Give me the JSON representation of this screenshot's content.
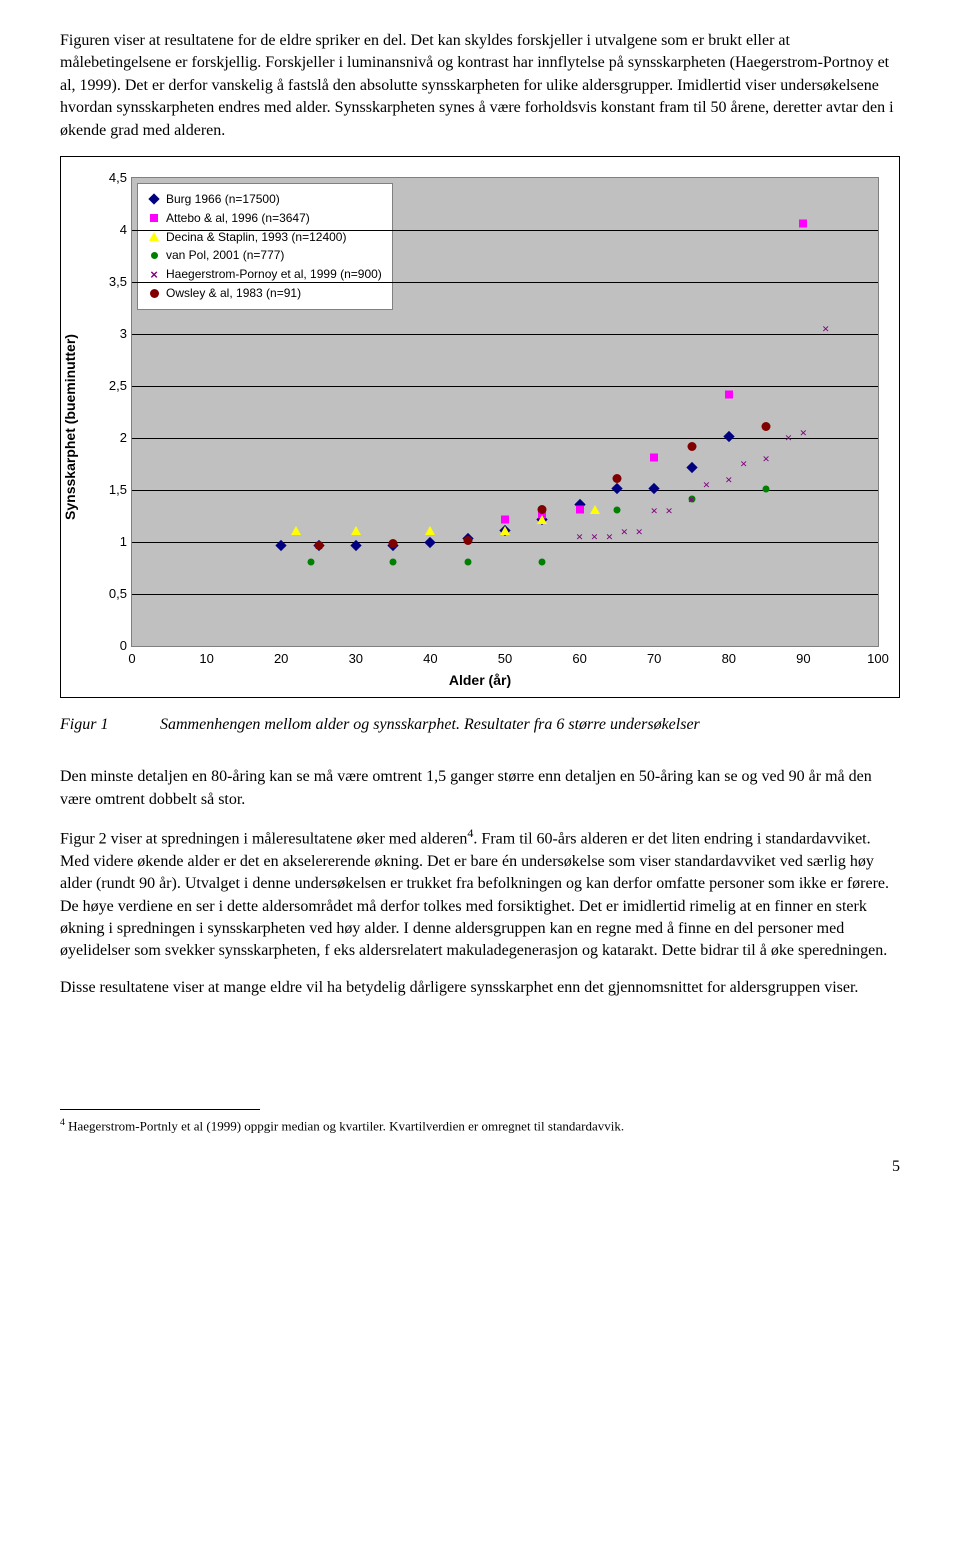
{
  "paragraphs": {
    "p1": "Figuren viser at resultatene for de eldre spriker en del. Det kan skyldes forskjeller i utvalgene som er brukt eller at målebetingelsene er forskjellig. Forskjeller i luminansnivå og kontrast har innflytelse på synsskarpheten (Haegerstrom-Portnoy et al, 1999). Det er derfor vanskelig å fastslå den absolutte synsskarpheten for ulike aldersgrupper. Imidlertid viser undersøkelsene hvordan synsskarpheten endres med alder. Synsskarpheten synes å være forholdsvis konstant fram til 50 årene, deretter avtar den i økende grad med alderen.",
    "p2": "Den minste detaljen en 80-åring kan se må være omtrent 1,5 ganger større enn detaljen  en 50-åring kan se og ved 90 år må den være omtrent dobbelt så stor.",
    "p3a": "Figur 2 viser at spredningen i måleresultatene øker med alderen",
    "p3b": ". Fram til 60-års alderen er det liten endring i standardavviket. Med videre økende alder er det en akselererende økning. Det er bare én undersøkelse som viser standardavviket ved særlig høy alder (rundt 90 år). Utvalget i denne undersøkelsen er trukket fra befolkningen og kan derfor omfatte personer som ikke er førere.  De høye verdiene en ser i dette aldersområdet må derfor tolkes med forsiktighet. Det er imidlertid rimelig at en finner en sterk økning i spredningen i synsskarpheten ved høy alder. I denne aldersgruppen kan en regne med å finne en del personer med øyelidelser som svekker synsskarpheten, f eks aldersrelatert makuladegenerasjon og katarakt. Dette bidrar til å øke speredningen.",
    "p4": "Disse resultatene viser at mange eldre vil ha betydelig dårligere synsskarphet enn det gjennomsnittet for aldersgruppen viser."
  },
  "figure": {
    "label": "Figur 1",
    "caption": "Sammenhengen mellom alder og synsskarphet. Resultater fra 6 større undersøkelser"
  },
  "chart": {
    "type": "scatter",
    "background_color": "#c0c0c0",
    "grid_color": "#000000",
    "border_color": "#808080",
    "xlabel": "Alder (år)",
    "ylabel": "Synsskarphet (bueminutter)",
    "label_fontsize": 14,
    "tick_fontsize": 13,
    "xlim": [
      0,
      100
    ],
    "xtick_step": 10,
    "ylim": [
      0,
      4.5
    ],
    "ytick_step": 0.5,
    "ytick_labels": [
      "0",
      "0,5",
      "1",
      "1,5",
      "2",
      "2,5",
      "3",
      "3,5",
      "4",
      "4,5"
    ],
    "legend_pos": "top-left",
    "series": [
      {
        "name": "Burg 1966 (n=17500)",
        "color": "#000080",
        "marker": "diamond",
        "points": [
          [
            20,
            0.95
          ],
          [
            25,
            0.95
          ],
          [
            30,
            0.95
          ],
          [
            35,
            0.95
          ],
          [
            40,
            0.98
          ],
          [
            45,
            1.02
          ],
          [
            50,
            1.1
          ],
          [
            55,
            1.2
          ],
          [
            60,
            1.35
          ],
          [
            65,
            1.5
          ],
          [
            70,
            1.5
          ],
          [
            75,
            1.7
          ],
          [
            80,
            2.0
          ]
        ]
      },
      {
        "name": "Attebo & al, 1996 (n=3647)",
        "color": "#ff00ff",
        "marker": "square",
        "points": [
          [
            50,
            1.2
          ],
          [
            55,
            1.25
          ],
          [
            60,
            1.3
          ],
          [
            70,
            1.8
          ],
          [
            80,
            2.4
          ],
          [
            90,
            4.05
          ]
        ]
      },
      {
        "name": "Decina & Staplin, 1993 (n=12400)",
        "color": "#ffff00",
        "marker": "triangle",
        "points": [
          [
            22,
            1.1
          ],
          [
            30,
            1.1
          ],
          [
            40,
            1.1
          ],
          [
            50,
            1.1
          ],
          [
            55,
            1.2
          ],
          [
            62,
            1.3
          ]
        ]
      },
      {
        "name": "van Pol, 2001 (n=777)",
        "color": "#008000",
        "marker": "dot",
        "points": [
          [
            24,
            0.8
          ],
          [
            35,
            0.8
          ],
          [
            45,
            0.8
          ],
          [
            55,
            0.8
          ],
          [
            65,
            1.3
          ],
          [
            75,
            1.4
          ],
          [
            85,
            1.5
          ]
        ]
      },
      {
        "name": "Haegerstrom-Pornoy et al, 1999 (n=900)",
        "color": "#800080",
        "marker": "x",
        "points": [
          [
            60,
            1.05
          ],
          [
            62,
            1.05
          ],
          [
            64,
            1.05
          ],
          [
            66,
            1.1
          ],
          [
            68,
            1.1
          ],
          [
            70,
            1.3
          ],
          [
            72,
            1.3
          ],
          [
            75,
            1.4
          ],
          [
            77,
            1.55
          ],
          [
            80,
            1.6
          ],
          [
            82,
            1.75
          ],
          [
            85,
            1.8
          ],
          [
            88,
            2.0
          ],
          [
            90,
            2.05
          ],
          [
            93,
            3.05
          ]
        ]
      },
      {
        "name": "Owsley & al, 1983 (n=91)",
        "color": "#800000",
        "marker": "bigdot",
        "points": [
          [
            25,
            0.95
          ],
          [
            35,
            0.97
          ],
          [
            45,
            1.0
          ],
          [
            55,
            1.3
          ],
          [
            65,
            1.6
          ],
          [
            75,
            1.9
          ],
          [
            85,
            2.1
          ]
        ]
      }
    ]
  },
  "footnote": {
    "num": "4",
    "text": " Haegerstrom-Portnly et al (1999) oppgir median og kvartiler. Kvartilverdien er omregnet til standardavvik."
  },
  "pagenum": "5"
}
